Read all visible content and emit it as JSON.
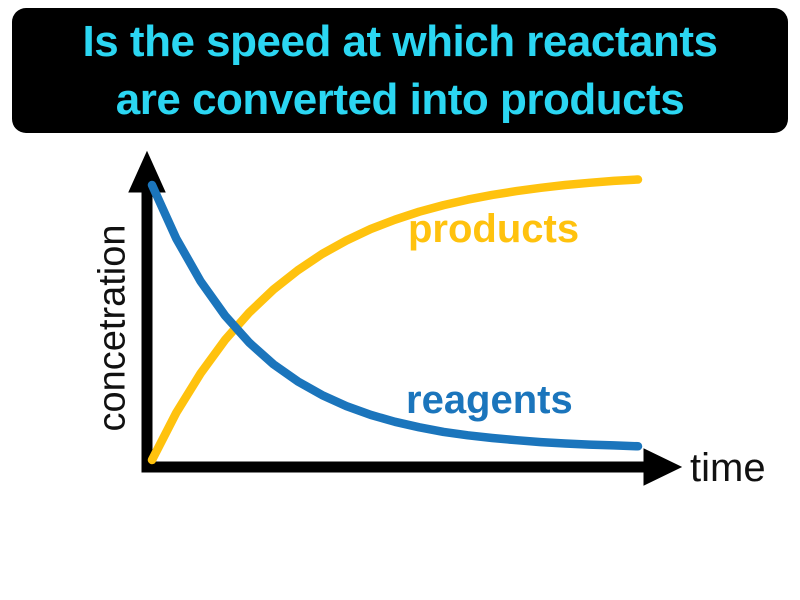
{
  "banner": {
    "line1": "Is the speed at which reactants",
    "line2": "are converted into products",
    "text_color": "#2bd6f2",
    "bg_color": "#000000"
  },
  "chart_data": {
    "type": "line",
    "title": "",
    "xlabel": "time",
    "ylabel": "concetration",
    "x_range": [
      0,
      1
    ],
    "ylim": [
      0,
      1.1
    ],
    "grid": false,
    "legend_position": "inline labels next to curves",
    "axis_color": "#000000",
    "x": [
      0,
      0.05,
      0.1,
      0.15,
      0.2,
      0.25,
      0.3,
      0.35,
      0.4,
      0.45,
      0.5,
      0.55,
      0.6,
      0.65,
      0.7,
      0.75,
      0.8,
      0.85,
      0.9,
      0.95,
      1
    ],
    "series": [
      {
        "name": "products",
        "color": "#ffc20e",
        "values": [
          0,
          0.172,
          0.315,
          0.436,
          0.536,
          0.62,
          0.69,
          0.749,
          0.798,
          0.84,
          0.874,
          0.903,
          0.927,
          0.947,
          0.964,
          0.978,
          0.99,
          1.0,
          1.008,
          1.015,
          1.02
        ]
      },
      {
        "name": "reagents",
        "color": "#1b75bc",
        "values": [
          1,
          0.805,
          0.65,
          0.526,
          0.427,
          0.348,
          0.286,
          0.236,
          0.196,
          0.164,
          0.139,
          0.119,
          0.102,
          0.09,
          0.08,
          0.072,
          0.065,
          0.06,
          0.056,
          0.053,
          0.05
        ]
      }
    ]
  }
}
